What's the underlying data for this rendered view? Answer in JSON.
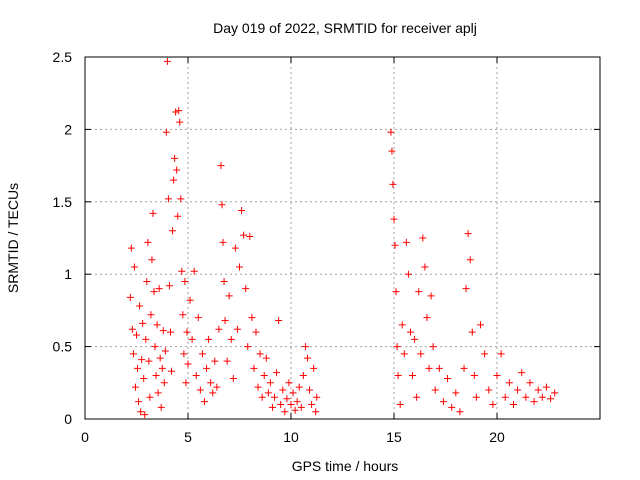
{
  "chart_data": {
    "type": "scatter",
    "title": "Day 019 of 2022, SRMTID for receiver aplj",
    "xlabel": "GPS time / hours",
    "ylabel": "SRMTID / TECUs",
    "xlim": [
      0,
      25
    ],
    "ylim": [
      0,
      2.5
    ],
    "xticks": [
      0,
      5,
      10,
      15,
      20
    ],
    "yticks": [
      0,
      0.5,
      1,
      1.5,
      2,
      2.5
    ],
    "xtick_labels": [
      "0",
      "5",
      "10",
      "15",
      "20"
    ],
    "ytick_labels": [
      "0",
      "0.5",
      "1",
      "1.5",
      "2",
      "2.5"
    ],
    "grid": true,
    "marker": "+",
    "color": "#ff0000",
    "series": [
      {
        "name": "SRMTID",
        "points": [
          [
            2.2,
            0.84
          ],
          [
            2.25,
            1.18
          ],
          [
            2.3,
            0.62
          ],
          [
            2.35,
            0.45
          ],
          [
            2.4,
            1.05
          ],
          [
            2.45,
            0.22
          ],
          [
            2.5,
            0.58
          ],
          [
            2.55,
            0.35
          ],
          [
            2.6,
            0.12
          ],
          [
            2.65,
            0.78
          ],
          [
            2.7,
            0.05
          ],
          [
            2.75,
            0.41
          ],
          [
            2.8,
            0.66
          ],
          [
            2.85,
            0.28
          ],
          [
            2.9,
            0.03
          ],
          [
            2.95,
            0.55
          ],
          [
            3.0,
            0.95
          ],
          [
            3.05,
            1.22
          ],
          [
            3.1,
            0.4
          ],
          [
            3.15,
            0.15
          ],
          [
            3.2,
            0.72
          ],
          [
            3.25,
            1.1
          ],
          [
            3.3,
            1.42
          ],
          [
            3.35,
            0.88
          ],
          [
            3.4,
            0.5
          ],
          [
            3.45,
            0.3
          ],
          [
            3.5,
            0.65
          ],
          [
            3.55,
            0.18
          ],
          [
            3.6,
            0.9
          ],
          [
            3.65,
            0.42
          ],
          [
            3.7,
            0.08
          ],
          [
            3.75,
            0.35
          ],
          [
            3.8,
            0.61
          ],
          [
            3.85,
            0.25
          ],
          [
            3.9,
            0.47
          ],
          [
            3.95,
            1.98
          ],
          [
            4.0,
            2.47
          ],
          [
            4.05,
            1.52
          ],
          [
            4.1,
            0.92
          ],
          [
            4.15,
            0.6
          ],
          [
            4.2,
            0.33
          ],
          [
            4.25,
            1.3
          ],
          [
            4.3,
            1.65
          ],
          [
            4.35,
            1.8
          ],
          [
            4.4,
            2.12
          ],
          [
            4.45,
            1.72
          ],
          [
            4.5,
            1.4
          ],
          [
            4.55,
            2.13
          ],
          [
            4.6,
            2.05
          ],
          [
            4.65,
            1.52
          ],
          [
            4.7,
            1.02
          ],
          [
            4.75,
            0.72
          ],
          [
            4.8,
            0.45
          ],
          [
            4.85,
            0.95
          ],
          [
            4.9,
            0.25
          ],
          [
            4.95,
            0.6
          ],
          [
            5.0,
            0.38
          ],
          [
            5.1,
            0.82
          ],
          [
            5.2,
            0.55
          ],
          [
            5.3,
            1.02
          ],
          [
            5.4,
            0.3
          ],
          [
            5.5,
            0.7
          ],
          [
            5.6,
            0.2
          ],
          [
            5.7,
            0.45
          ],
          [
            5.8,
            0.12
          ],
          [
            5.9,
            0.35
          ],
          [
            6.0,
            0.55
          ],
          [
            6.1,
            0.25
          ],
          [
            6.2,
            0.18
          ],
          [
            6.3,
            0.4
          ],
          [
            6.4,
            0.22
          ],
          [
            6.5,
            0.62
          ],
          [
            6.6,
            1.75
          ],
          [
            6.65,
            1.48
          ],
          [
            6.7,
            1.22
          ],
          [
            6.75,
            0.95
          ],
          [
            6.8,
            0.68
          ],
          [
            6.9,
            0.4
          ],
          [
            7.0,
            0.85
          ],
          [
            7.1,
            0.55
          ],
          [
            7.2,
            0.28
          ],
          [
            7.3,
            1.18
          ],
          [
            7.4,
            0.62
          ],
          [
            7.5,
            1.05
          ],
          [
            7.6,
            1.44
          ],
          [
            7.7,
            1.27
          ],
          [
            7.8,
            0.9
          ],
          [
            7.9,
            0.5
          ],
          [
            8.0,
            1.26
          ],
          [
            8.1,
            0.7
          ],
          [
            8.2,
            0.35
          ],
          [
            8.3,
            0.6
          ],
          [
            8.4,
            0.22
          ],
          [
            8.5,
            0.45
          ],
          [
            8.6,
            0.15
          ],
          [
            8.7,
            0.3
          ],
          [
            8.8,
            0.42
          ],
          [
            8.9,
            0.18
          ],
          [
            9.0,
            0.25
          ],
          [
            9.1,
            0.08
          ],
          [
            9.2,
            0.15
          ],
          [
            9.3,
            0.32
          ],
          [
            9.4,
            0.68
          ],
          [
            9.5,
            0.1
          ],
          [
            9.6,
            0.2
          ],
          [
            9.7,
            0.05
          ],
          [
            9.8,
            0.14
          ],
          [
            9.9,
            0.25
          ],
          [
            10.0,
            0.1
          ],
          [
            10.1,
            0.18
          ],
          [
            10.2,
            0.06
          ],
          [
            10.3,
            0.12
          ],
          [
            10.4,
            0.22
          ],
          [
            10.5,
            0.08
          ],
          [
            10.6,
            0.3
          ],
          [
            10.7,
            0.5
          ],
          [
            10.8,
            0.42
          ],
          [
            10.9,
            0.2
          ],
          [
            11.0,
            0.1
          ],
          [
            11.1,
            0.35
          ],
          [
            11.2,
            0.05
          ],
          [
            11.25,
            0.15
          ],
          [
            14.85,
            1.98
          ],
          [
            14.9,
            1.85
          ],
          [
            14.95,
            1.62
          ],
          [
            15.0,
            1.38
          ],
          [
            15.05,
            1.2
          ],
          [
            15.1,
            0.88
          ],
          [
            15.15,
            0.5
          ],
          [
            15.2,
            0.3
          ],
          [
            15.3,
            0.1
          ],
          [
            15.4,
            0.65
          ],
          [
            15.5,
            0.45
          ],
          [
            15.6,
            1.22
          ],
          [
            15.7,
            1.0
          ],
          [
            15.8,
            0.6
          ],
          [
            15.9,
            0.3
          ],
          [
            16.0,
            0.55
          ],
          [
            16.1,
            0.15
          ],
          [
            16.2,
            0.88
          ],
          [
            16.3,
            0.45
          ],
          [
            16.4,
            1.25
          ],
          [
            16.5,
            1.05
          ],
          [
            16.6,
            0.7
          ],
          [
            16.7,
            0.35
          ],
          [
            16.8,
            0.85
          ],
          [
            16.9,
            0.5
          ],
          [
            17.0,
            0.2
          ],
          [
            17.2,
            0.35
          ],
          [
            17.4,
            0.12
          ],
          [
            17.6,
            0.28
          ],
          [
            17.8,
            0.08
          ],
          [
            18.0,
            0.18
          ],
          [
            18.2,
            0.05
          ],
          [
            18.4,
            0.35
          ],
          [
            18.5,
            0.9
          ],
          [
            18.6,
            1.28
          ],
          [
            18.7,
            1.1
          ],
          [
            18.8,
            0.6
          ],
          [
            18.9,
            0.3
          ],
          [
            19.0,
            0.15
          ],
          [
            19.2,
            0.65
          ],
          [
            19.4,
            0.45
          ],
          [
            19.6,
            0.2
          ],
          [
            19.8,
            0.1
          ],
          [
            20.0,
            0.3
          ],
          [
            20.2,
            0.45
          ],
          [
            20.4,
            0.15
          ],
          [
            20.6,
            0.25
          ],
          [
            20.8,
            0.1
          ],
          [
            21.0,
            0.2
          ],
          [
            21.2,
            0.32
          ],
          [
            21.4,
            0.15
          ],
          [
            21.6,
            0.25
          ],
          [
            21.8,
            0.12
          ],
          [
            22.0,
            0.2
          ],
          [
            22.2,
            0.15
          ],
          [
            22.4,
            0.22
          ],
          [
            22.6,
            0.14
          ],
          [
            22.8,
            0.18
          ]
        ]
      }
    ]
  }
}
